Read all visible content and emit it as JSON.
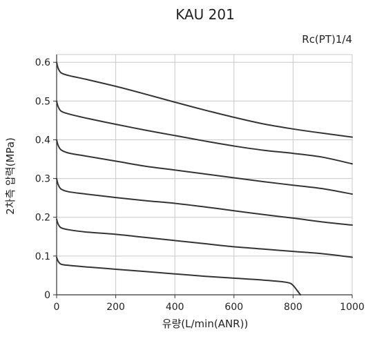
{
  "chart_data": {
    "type": "line",
    "title": "KAU 201",
    "subtitle": "Rc(PT)1/4",
    "xlabel": "유량(L/min(ANR))",
    "ylabel": "2차측 압력(MPa)",
    "xlim": [
      0,
      1000
    ],
    "ylim": [
      0,
      0.62
    ],
    "xticks": [
      "0",
      "200",
      "400",
      "600",
      "800",
      "1000"
    ],
    "yticks": [
      "0",
      "0.1",
      "0.2",
      "0.3",
      "0.4",
      "0.5",
      "0.6"
    ],
    "xtick_values": [
      0,
      200,
      400,
      600,
      800,
      1000
    ],
    "ytick_values": [
      0,
      0.1,
      0.2,
      0.3,
      0.4,
      0.5,
      0.6
    ],
    "grid": true,
    "series": [
      {
        "values": [
          [
            0,
            0.6
          ],
          [
            5,
            0.585
          ],
          [
            15,
            0.573
          ],
          [
            40,
            0.566
          ],
          [
            100,
            0.556
          ],
          [
            200,
            0.538
          ],
          [
            300,
            0.518
          ],
          [
            400,
            0.497
          ],
          [
            500,
            0.477
          ],
          [
            600,
            0.458
          ],
          [
            700,
            0.441
          ],
          [
            800,
            0.428
          ],
          [
            900,
            0.417
          ],
          [
            1000,
            0.407
          ]
        ]
      },
      {
        "values": [
          [
            0,
            0.5
          ],
          [
            5,
            0.486
          ],
          [
            15,
            0.474
          ],
          [
            40,
            0.467
          ],
          [
            100,
            0.456
          ],
          [
            200,
            0.44
          ],
          [
            300,
            0.425
          ],
          [
            400,
            0.411
          ],
          [
            500,
            0.397
          ],
          [
            600,
            0.384
          ],
          [
            700,
            0.373
          ],
          [
            800,
            0.365
          ],
          [
            900,
            0.355
          ],
          [
            1000,
            0.338
          ]
        ]
      },
      {
        "values": [
          [
            0,
            0.4
          ],
          [
            5,
            0.386
          ],
          [
            15,
            0.374
          ],
          [
            40,
            0.366
          ],
          [
            100,
            0.358
          ],
          [
            200,
            0.345
          ],
          [
            300,
            0.332
          ],
          [
            400,
            0.322
          ],
          [
            500,
            0.312
          ],
          [
            600,
            0.302
          ],
          [
            700,
            0.292
          ],
          [
            800,
            0.283
          ],
          [
            900,
            0.274
          ],
          [
            1000,
            0.26
          ]
        ]
      },
      {
        "values": [
          [
            0,
            0.3
          ],
          [
            5,
            0.285
          ],
          [
            15,
            0.273
          ],
          [
            40,
            0.266
          ],
          [
            100,
            0.26
          ],
          [
            200,
            0.251
          ],
          [
            300,
            0.243
          ],
          [
            400,
            0.236
          ],
          [
            500,
            0.227
          ],
          [
            600,
            0.217
          ],
          [
            700,
            0.207
          ],
          [
            800,
            0.198
          ],
          [
            900,
            0.188
          ],
          [
            1000,
            0.18
          ]
        ]
      },
      {
        "values": [
          [
            0,
            0.195
          ],
          [
            5,
            0.183
          ],
          [
            15,
            0.173
          ],
          [
            40,
            0.168
          ],
          [
            100,
            0.162
          ],
          [
            200,
            0.156
          ],
          [
            300,
            0.148
          ],
          [
            400,
            0.14
          ],
          [
            500,
            0.132
          ],
          [
            600,
            0.124
          ],
          [
            700,
            0.118
          ],
          [
            800,
            0.112
          ],
          [
            900,
            0.106
          ],
          [
            1000,
            0.097
          ]
        ]
      },
      {
        "values": [
          [
            0,
            0.097
          ],
          [
            5,
            0.087
          ],
          [
            15,
            0.079
          ],
          [
            40,
            0.076
          ],
          [
            100,
            0.072
          ],
          [
            200,
            0.066
          ],
          [
            300,
            0.06
          ],
          [
            400,
            0.054
          ],
          [
            500,
            0.048
          ],
          [
            600,
            0.043
          ],
          [
            700,
            0.038
          ],
          [
            760,
            0.034
          ],
          [
            790,
            0.03
          ],
          [
            805,
            0.02
          ],
          [
            815,
            0.01
          ],
          [
            825,
            0.0
          ]
        ]
      }
    ],
    "line_color": "#333333",
    "grid_color": "#c8c8c8"
  }
}
